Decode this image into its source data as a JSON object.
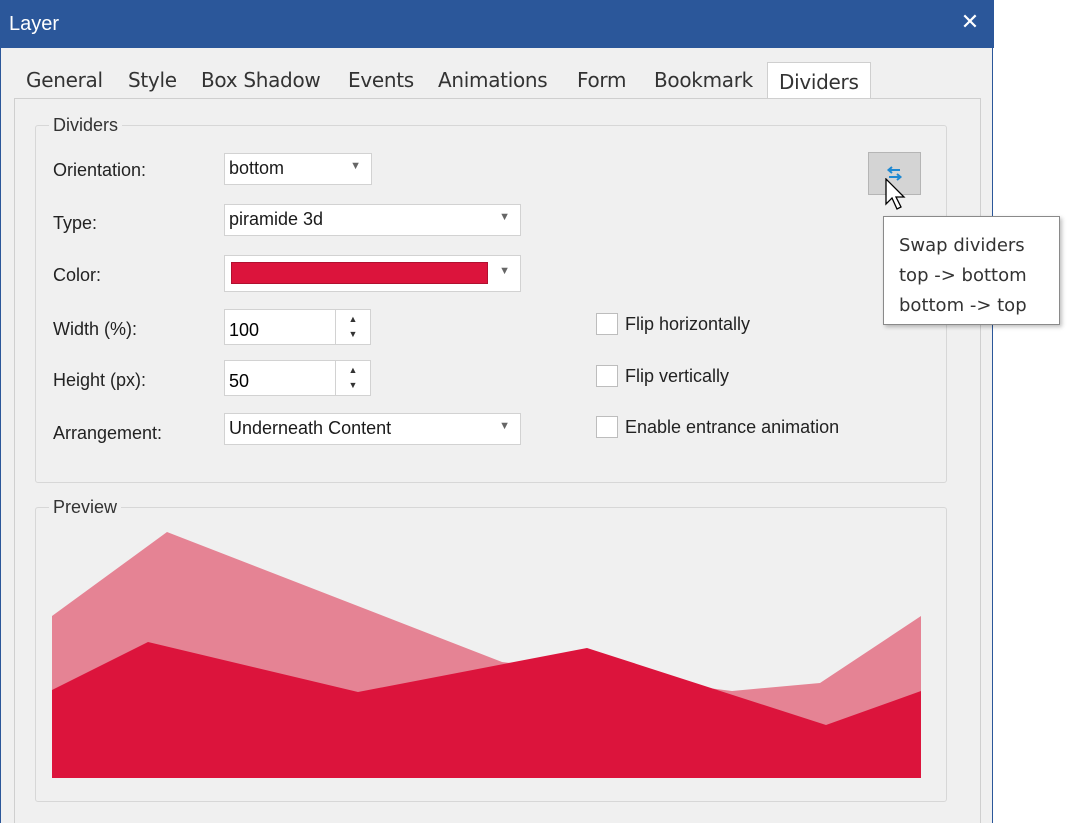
{
  "window": {
    "title": "Layer",
    "close_glyph": "✕"
  },
  "tabs": [
    {
      "label": "General",
      "active": false
    },
    {
      "label": "Style",
      "active": false
    },
    {
      "label": "Box Shadow",
      "active": false
    },
    {
      "label": "Events",
      "active": false
    },
    {
      "label": "Animations",
      "active": false
    },
    {
      "label": "Form",
      "active": false
    },
    {
      "label": "Bookmark",
      "active": false
    },
    {
      "label": "Dividers",
      "active": true
    }
  ],
  "dividers": {
    "group_title": "Dividers",
    "orientation": {
      "label": "Orientation:",
      "value": "bottom"
    },
    "type": {
      "label": "Type:",
      "value": "piramide 3d"
    },
    "color": {
      "label": "Color:",
      "value": "#dc143c"
    },
    "width": {
      "label": "Width (%):",
      "value": "100"
    },
    "height": {
      "label": "Height (px):",
      "value": "50"
    },
    "arrangement": {
      "label": "Arrangement:",
      "value": "Underneath Content"
    },
    "flip_horizontally": {
      "label": "Flip horizontally",
      "checked": false
    },
    "flip_vertically": {
      "label": "Flip vertically",
      "checked": false
    },
    "entrance_animation": {
      "label": "Enable entrance animation",
      "checked": false
    },
    "swap_button": {
      "icon": "swap-arrows-icon"
    }
  },
  "tooltip": {
    "lines": [
      "Swap dividers",
      "top -> bottom",
      "bottom -> top"
    ]
  },
  "preview": {
    "group_title": "Preview",
    "colors": {
      "back_layer": "#e58394",
      "front_layer": "#dc143c"
    }
  }
}
